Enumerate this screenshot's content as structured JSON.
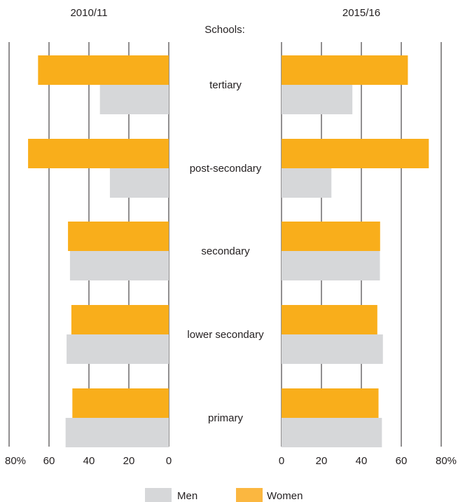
{
  "chart_data": {
    "type": "bar",
    "orientation": "horizontal-butterfly",
    "panels": [
      {
        "title": "2010/11",
        "direction": "left",
        "xlim": [
          0,
          80
        ],
        "ticks": [
          "80%",
          "60",
          "40",
          "20",
          "0"
        ]
      },
      {
        "title": "2015/16",
        "direction": "right",
        "xlim": [
          0,
          80
        ],
        "ticks": [
          "0",
          "20",
          "40",
          "60",
          "80%"
        ]
      }
    ],
    "category_axis_label": "Schools:",
    "categories": [
      "tertiary",
      "post-secondary",
      "secondary",
      "lower secondary",
      "primary"
    ],
    "series": [
      {
        "name": "Women",
        "color": "#f9ae1b",
        "values_2010_11": [
          65.5,
          70.5,
          50.5,
          48.8,
          48.3
        ],
        "values_2015_16": [
          63.3,
          73.8,
          49.4,
          48.0,
          48.6
        ]
      },
      {
        "name": "Men",
        "color": "#d6d7d9",
        "values_2010_11": [
          34.5,
          29.5,
          49.5,
          51.2,
          51.7
        ],
        "values_2015_16": [
          35.5,
          25.0,
          49.3,
          50.8,
          50.3
        ]
      }
    ],
    "grid": true,
    "legend_position": "bottom-center",
    "legend": [
      {
        "label": "Men",
        "color": "#d6d7d9",
        "swatch_color": "#d6d7d9"
      },
      {
        "label": "Women",
        "color": "#f9ae1b",
        "swatch_color": "#fbb740"
      }
    ]
  }
}
